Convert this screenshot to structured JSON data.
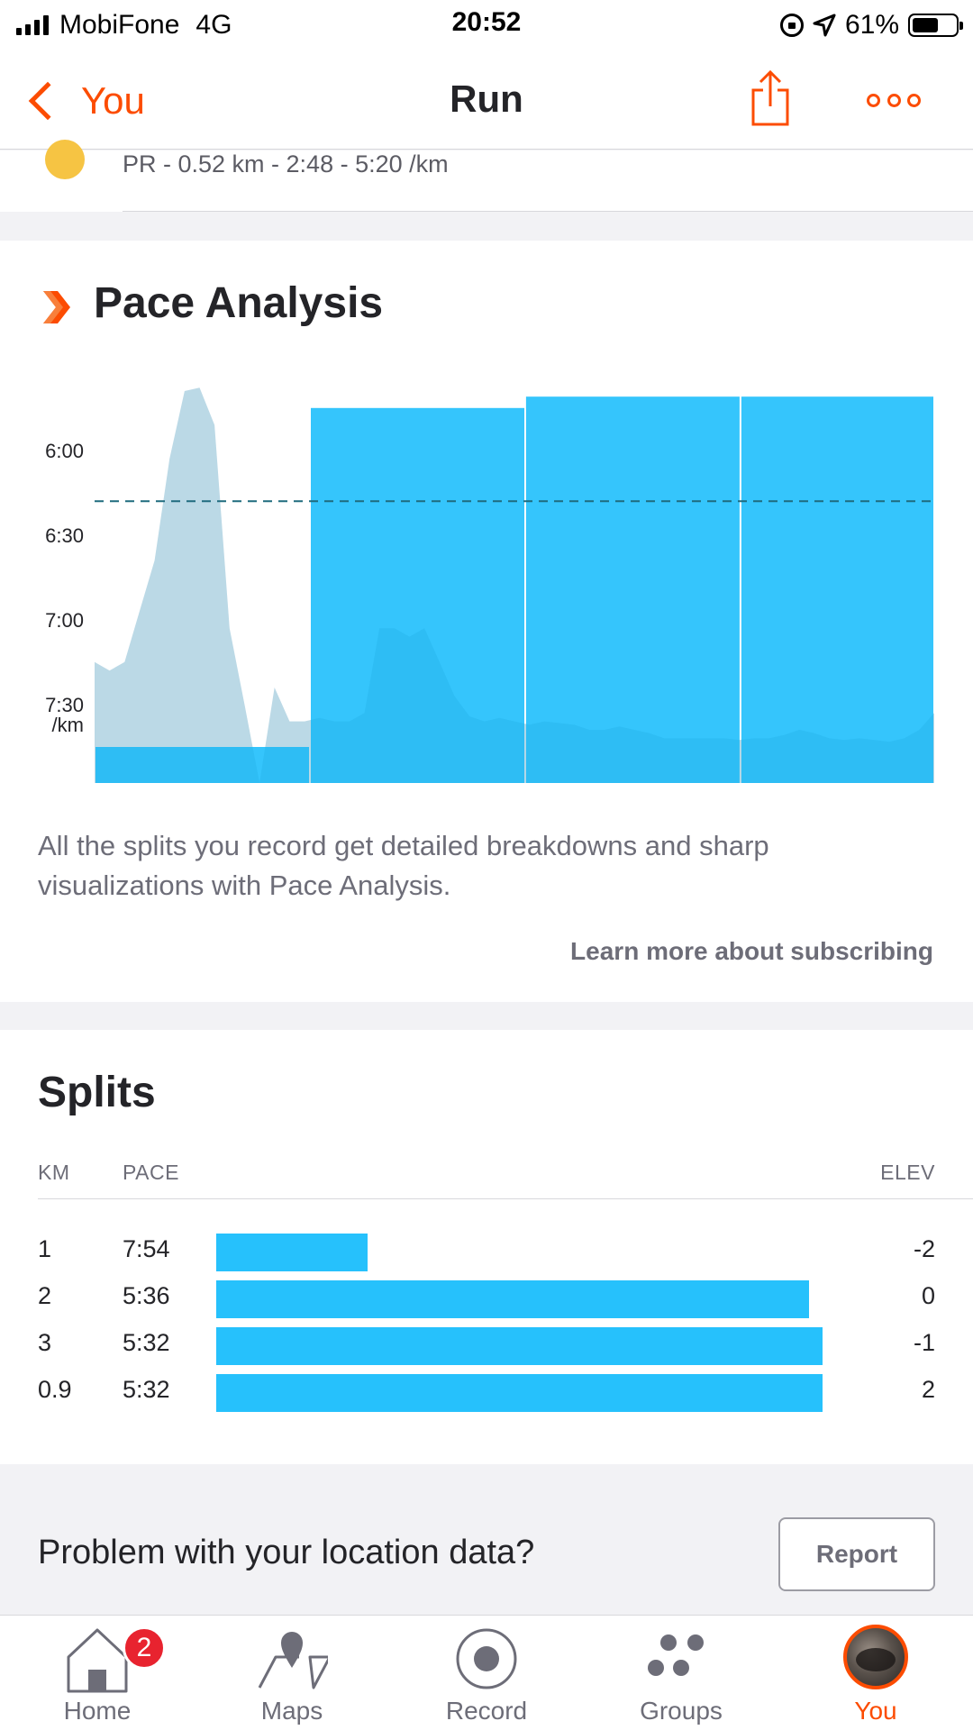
{
  "status_bar": {
    "carrier": "MobiFone",
    "network": "4G",
    "time": "20:52",
    "battery": "61%"
  },
  "nav": {
    "back_label": "You",
    "title": "Run",
    "share_icon": "share-icon",
    "more_icon": "more-icon"
  },
  "pr": {
    "text": "PR - 0.52 km - 2:48 - 5:20 /km"
  },
  "pace_analysis": {
    "title": "Pace Analysis",
    "description": "All the splits you record get detailed breakdowns and sharp visualizations with Pace Analysis.",
    "learn_more": "Learn more about subscribing"
  },
  "chart_data": {
    "type": "bar",
    "y_tick_labels": [
      "6:00",
      "6:30",
      "7:00",
      "7:30",
      "/km"
    ],
    "y_ticks_min_per_km": [
      6.0,
      6.5,
      7.0,
      7.5
    ],
    "y_range_min_per_km": [
      8.0,
      5.5
    ],
    "y_inverted": true,
    "reference_line_min_per_km": 6.15,
    "reference_style": "dashed",
    "categories": [
      "1",
      "2",
      "3",
      "0.9"
    ],
    "split_pace_min_per_km": [
      7.9,
      5.6,
      5.533,
      5.533
    ],
    "split_distance_km": [
      1,
      1,
      1,
      0.9
    ],
    "bar_color": "#26c1fc",
    "background_trace_color": "#e8e8ea",
    "background_trace_pace_min_per_km": [
      7.1,
      7.15,
      7.1,
      6.8,
      6.5,
      5.9,
      5.5,
      5.48,
      5.7,
      6.9,
      7.35,
      8.0,
      7.25,
      7.45,
      7.45,
      7.43,
      7.45,
      7.45,
      7.4,
      6.9,
      6.9,
      6.95,
      6.9,
      7.1,
      7.3,
      7.42,
      7.45,
      7.43,
      7.45,
      7.47,
      7.45,
      7.46,
      7.47,
      7.5,
      7.5,
      7.48,
      7.5,
      7.52,
      7.55,
      7.55,
      7.55,
      7.55,
      7.55,
      7.56,
      7.55,
      7.55,
      7.53,
      7.5,
      7.52,
      7.55,
      7.56,
      7.55,
      7.56,
      7.57,
      7.55,
      7.5,
      7.4
    ]
  },
  "splits": {
    "title": "Splits",
    "headers": {
      "km": "KM",
      "pace": "PACE",
      "elev": "ELEV"
    },
    "rows": [
      {
        "km": "1",
        "pace": "7:54",
        "elev": "-2",
        "bar_fraction": 0.249
      },
      {
        "km": "2",
        "pace": "5:36",
        "elev": "0",
        "bar_fraction": 0.978
      },
      {
        "km": "3",
        "pace": "5:32",
        "elev": "-1",
        "bar_fraction": 1.0
      },
      {
        "km": "0.9",
        "pace": "5:32",
        "elev": "2",
        "bar_fraction": 1.0
      }
    ]
  },
  "problem": {
    "text": "Problem with your location data?",
    "button": "Report"
  },
  "tabs": [
    {
      "label": "Home",
      "icon": "home-icon",
      "badge": "2"
    },
    {
      "label": "Maps",
      "icon": "map-pin-icon"
    },
    {
      "label": "Record",
      "icon": "record-icon"
    },
    {
      "label": "Groups",
      "icon": "groups-icon"
    },
    {
      "label": "You",
      "icon": "avatar",
      "active": true
    }
  ]
}
